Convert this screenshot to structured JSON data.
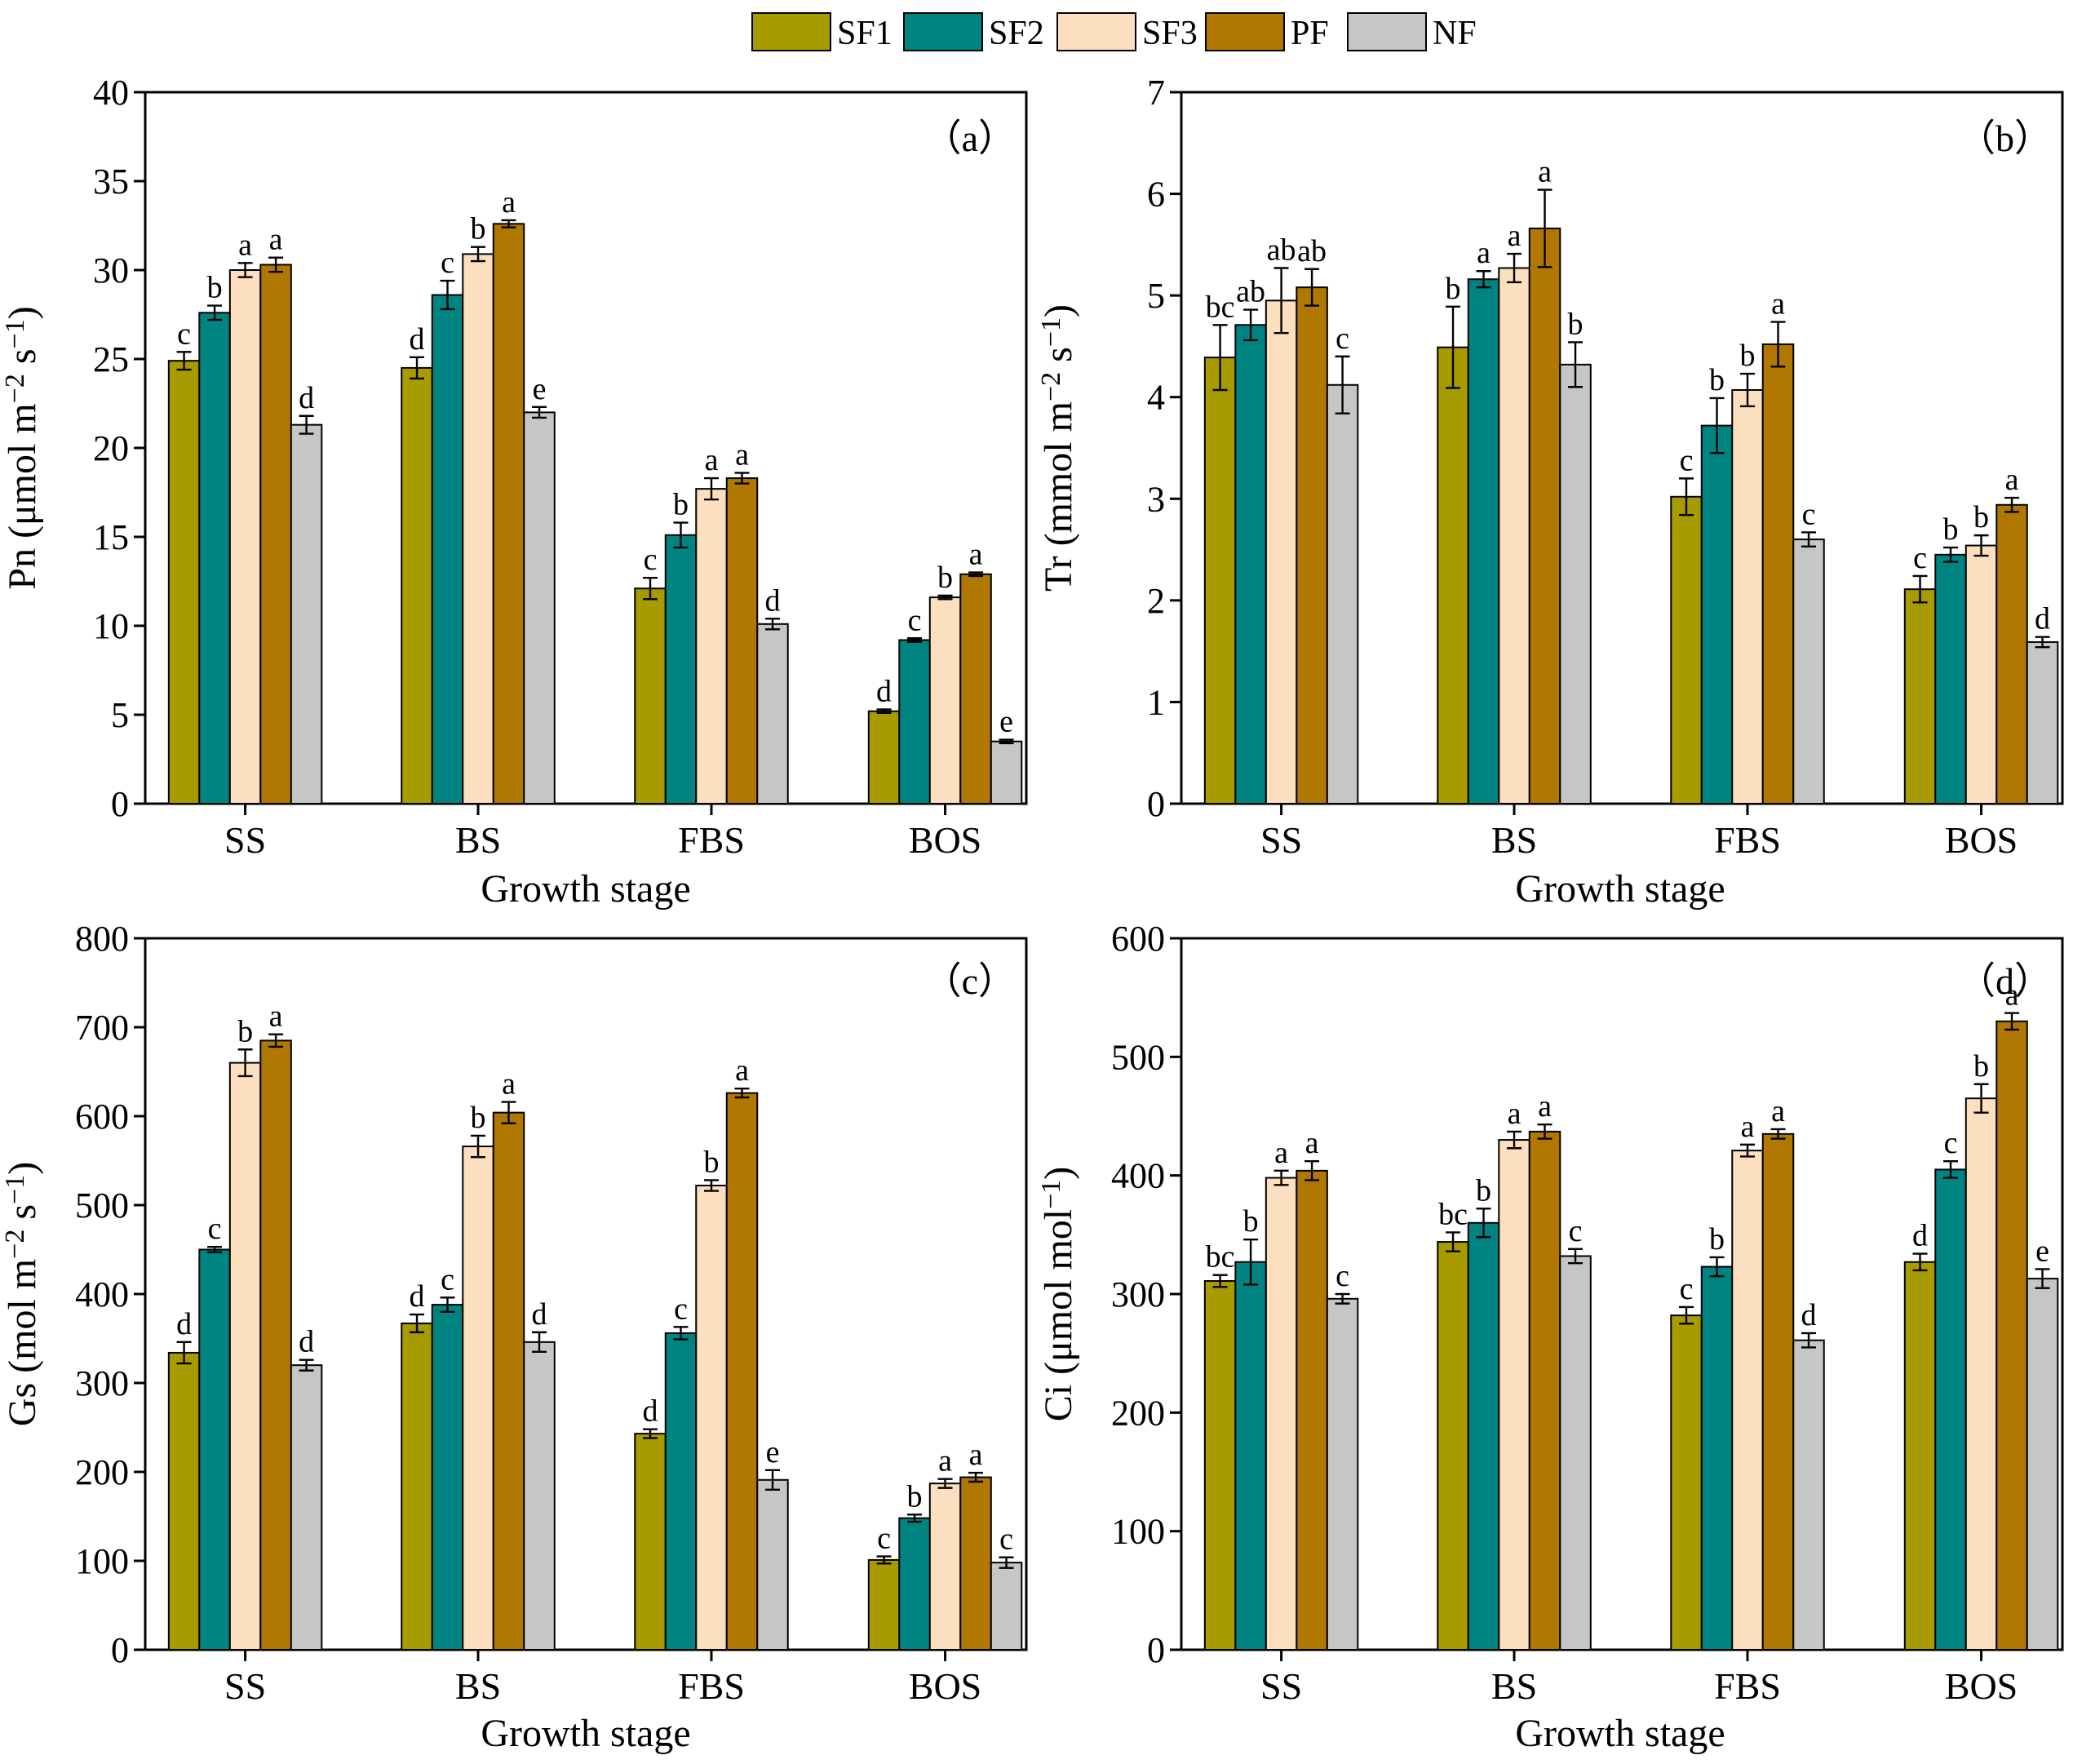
{
  "legend": [
    {
      "name": "SF1",
      "color": "#A89B00"
    },
    {
      "name": "SF2",
      "color": "#008482"
    },
    {
      "name": "SF3",
      "color": "#FCDFBE"
    },
    {
      "name": "PF",
      "color": "#B07800"
    },
    {
      "name": "NF",
      "color": "#C6C6C6"
    }
  ],
  "chart_data": [
    {
      "type": "bar",
      "panel": "（a）",
      "ylabel": "Pn (μmol m−2 s−1)",
      "ylabel_parts": [
        "Pn (μmol m",
        "−2",
        " s",
        "−1",
        ")"
      ],
      "xlabel": "Growth stage",
      "ylim": [
        0,
        40
      ],
      "yticks": [
        0,
        5,
        10,
        15,
        20,
        25,
        30,
        35,
        40
      ],
      "categories": [
        "SS",
        "BS",
        "FBS",
        "BOS"
      ],
      "series": [
        {
          "name": "SF1",
          "values": [
            24.9,
            24.5,
            12.1,
            5.2
          ],
          "errors": [
            0.5,
            0.6,
            0.6,
            0.1
          ],
          "letters": [
            "c",
            "d",
            "c",
            "d"
          ]
        },
        {
          "name": "SF2",
          "values": [
            27.6,
            28.6,
            15.1,
            9.2
          ],
          "errors": [
            0.4,
            0.8,
            0.7,
            0.1
          ],
          "letters": [
            "b",
            "c",
            "b",
            "c"
          ]
        },
        {
          "name": "SF3",
          "values": [
            30.0,
            30.9,
            17.7,
            11.6
          ],
          "errors": [
            0.4,
            0.4,
            0.6,
            0.1
          ],
          "letters": [
            "a",
            "b",
            "a",
            "b"
          ]
        },
        {
          "name": "PF",
          "values": [
            30.3,
            32.6,
            18.3,
            12.9
          ],
          "errors": [
            0.4,
            0.2,
            0.3,
            0.1
          ],
          "letters": [
            "a",
            "a",
            "a",
            "a"
          ]
        },
        {
          "name": "NF",
          "values": [
            21.3,
            22.0,
            10.1,
            3.5
          ],
          "errors": [
            0.5,
            0.3,
            0.3,
            0.1
          ],
          "letters": [
            "d",
            "e",
            "d",
            "e"
          ]
        }
      ]
    },
    {
      "type": "bar",
      "panel": "（b）",
      "ylabel": "Tr (mmol m−2 s−1)",
      "ylabel_parts": [
        "Tr (mmol m",
        "−2",
        " s",
        "−1",
        ")"
      ],
      "xlabel": "Growth stage",
      "ylim": [
        0,
        7
      ],
      "yticks": [
        0,
        1,
        2,
        3,
        4,
        5,
        6,
        7
      ],
      "categories": [
        "SS",
        "BS",
        "FBS",
        "BOS"
      ],
      "series": [
        {
          "name": "SF1",
          "values": [
            4.39,
            4.49,
            3.02,
            2.11
          ],
          "errors": [
            0.32,
            0.4,
            0.18,
            0.13
          ],
          "letters": [
            "bc",
            "b",
            "c",
            "c"
          ]
        },
        {
          "name": "SF2",
          "values": [
            4.71,
            5.16,
            3.72,
            2.45
          ],
          "errors": [
            0.15,
            0.08,
            0.27,
            0.07
          ],
          "letters": [
            "ab",
            "a",
            "b",
            "b"
          ]
        },
        {
          "name": "SF3",
          "values": [
            4.95,
            5.27,
            4.07,
            2.54
          ],
          "errors": [
            0.32,
            0.14,
            0.16,
            0.1
          ],
          "letters": [
            "ab",
            "a",
            "b",
            "b"
          ]
        },
        {
          "name": "PF",
          "values": [
            5.08,
            5.66,
            4.52,
            2.94
          ],
          "errors": [
            0.18,
            0.38,
            0.22,
            0.07
          ],
          "letters": [
            "ab",
            "a",
            "a",
            "a"
          ]
        },
        {
          "name": "NF",
          "values": [
            4.12,
            4.32,
            2.6,
            1.59
          ],
          "errors": [
            0.28,
            0.22,
            0.07,
            0.05
          ],
          "letters": [
            "c",
            "b",
            "c",
            "d"
          ]
        }
      ]
    },
    {
      "type": "bar",
      "panel": "（c）",
      "ylabel": "Gs (mol m−2 s−1)",
      "ylabel_parts": [
        "Gs (mol m",
        "−2",
        " s",
        "−1",
        ")"
      ],
      "xlabel": "Growth stage",
      "ylim": [
        0,
        800
      ],
      "yticks": [
        0,
        100,
        200,
        300,
        400,
        500,
        600,
        700,
        800
      ],
      "categories": [
        "SS",
        "BS",
        "FBS",
        "BOS"
      ],
      "series": [
        {
          "name": "SF1",
          "values": [
            334,
            367,
            243,
            101
          ],
          "errors": [
            12,
            10,
            5,
            4
          ],
          "letters": [
            "d",
            "d",
            "d",
            "c"
          ]
        },
        {
          "name": "SF2",
          "values": [
            450,
            388,
            356,
            148
          ],
          "errors": [
            3,
            8,
            7,
            4
          ],
          "letters": [
            "c",
            "c",
            "c",
            "b"
          ]
        },
        {
          "name": "SF3",
          "values": [
            660,
            566,
            522,
            187
          ],
          "errors": [
            15,
            12,
            6,
            5
          ],
          "letters": [
            "b",
            "b",
            "b",
            "a"
          ]
        },
        {
          "name": "PF",
          "values": [
            685,
            604,
            626,
            194
          ],
          "errors": [
            7,
            12,
            5,
            5
          ],
          "letters": [
            "a",
            "a",
            "a",
            "a"
          ]
        },
        {
          "name": "NF",
          "values": [
            320,
            346,
            191,
            98
          ],
          "errors": [
            6,
            11,
            11,
            6
          ],
          "letters": [
            "d",
            "d",
            "e",
            "c"
          ]
        }
      ]
    },
    {
      "type": "bar",
      "panel": "（d）",
      "ylabel": "Ci (μmol mol−1)",
      "ylabel_parts": [
        "Ci (μmol mol",
        "−1",
        ")"
      ],
      "xlabel": "Growth stage",
      "ylim": [
        0,
        600
      ],
      "yticks": [
        0,
        100,
        200,
        300,
        400,
        500,
        600
      ],
      "categories": [
        "SS",
        "BS",
        "FBS",
        "BOS"
      ],
      "series": [
        {
          "name": "SF1",
          "values": [
            311,
            344,
            282,
            327
          ],
          "errors": [
            5,
            8,
            7,
            7
          ],
          "letters": [
            "bc",
            "bc",
            "c",
            "d"
          ]
        },
        {
          "name": "SF2",
          "values": [
            327,
            360,
            323,
            405
          ],
          "errors": [
            19,
            12,
            8,
            7
          ],
          "letters": [
            "b",
            "b",
            "b",
            "c"
          ]
        },
        {
          "name": "SF3",
          "values": [
            398,
            430,
            421,
            465
          ],
          "errors": [
            6,
            7,
            5,
            12
          ],
          "letters": [
            "a",
            "a",
            "a",
            "b"
          ]
        },
        {
          "name": "PF",
          "values": [
            404,
            437,
            435,
            530
          ],
          "errors": [
            8,
            6,
            4,
            7
          ],
          "letters": [
            "a",
            "a",
            "a",
            "a"
          ]
        },
        {
          "name": "NF",
          "values": [
            296,
            332,
            261,
            313
          ],
          "errors": [
            4,
            6,
            6,
            8
          ],
          "letters": [
            "c",
            "c",
            "d",
            "e"
          ]
        }
      ]
    }
  ]
}
